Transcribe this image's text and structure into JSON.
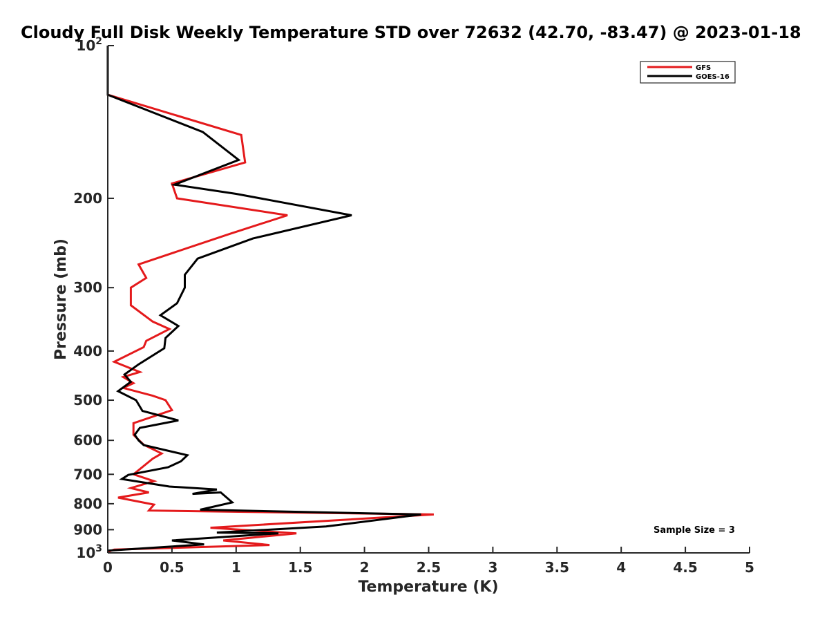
{
  "chart_data": {
    "type": "line",
    "title": "Cloudy Full Disk Weekly Temperature STD over 72632 (42.70, -83.47) @ 2023-01-18",
    "xlabel": "Temperature (K)",
    "ylabel": "Pressure (mb)",
    "xlim": [
      0,
      5
    ],
    "ylim": [
      100,
      1000
    ],
    "yscale": "log",
    "y_reversed": true,
    "grid": false,
    "legend_position": "top-right",
    "x_ticks": [
      0,
      0.5,
      1,
      1.5,
      2,
      2.5,
      3,
      3.5,
      4,
      4.5,
      5
    ],
    "x_tick_labels": [
      "0",
      "0.5",
      "1",
      "1.5",
      "2",
      "2.5",
      "3",
      "3.5",
      "4",
      "4.5",
      "5"
    ],
    "y_ticks": [
      {
        "value": 100,
        "base": "10",
        "exp": "2"
      },
      {
        "value": 200,
        "label": "200"
      },
      {
        "value": 300,
        "label": "300"
      },
      {
        "value": 400,
        "label": "400"
      },
      {
        "value": 500,
        "label": "500"
      },
      {
        "value": 600,
        "label": "600"
      },
      {
        "value": 700,
        "label": "700"
      },
      {
        "value": 800,
        "label": "800"
      },
      {
        "value": 900,
        "label": "900"
      },
      {
        "value": 1000,
        "base": "10",
        "exp": "3"
      }
    ],
    "annotation": "Sample Size = 3",
    "series": [
      {
        "name": "GFS",
        "color": "#e41a1c",
        "points": [
          [
            0,
            100
          ],
          [
            0,
            125
          ],
          [
            1.04,
            150
          ],
          [
            1.07,
            170
          ],
          [
            0.5,
            187
          ],
          [
            0.54,
            200
          ],
          [
            1.4,
            216
          ],
          [
            0.95,
            235
          ],
          [
            0.24,
            270
          ],
          [
            0.3,
            287
          ],
          [
            0.18,
            300
          ],
          [
            0.18,
            325
          ],
          [
            0.35,
            350
          ],
          [
            0.48,
            362
          ],
          [
            0.3,
            382
          ],
          [
            0.28,
            393
          ],
          [
            0.05,
            420
          ],
          [
            0.25,
            440
          ],
          [
            0.12,
            450
          ],
          [
            0.2,
            463
          ],
          [
            0.12,
            473
          ],
          [
            0.35,
            490
          ],
          [
            0.45,
            500
          ],
          [
            0.5,
            523
          ],
          [
            0.2,
            555
          ],
          [
            0.2,
            585
          ],
          [
            0.28,
            612
          ],
          [
            0.42,
            637
          ],
          [
            0.35,
            652
          ],
          [
            0.2,
            700
          ],
          [
            0.36,
            722
          ],
          [
            0.18,
            745
          ],
          [
            0.32,
            760
          ],
          [
            0.08,
            778
          ],
          [
            0.36,
            803
          ],
          [
            0.32,
            825
          ],
          [
            2.54,
            840
          ],
          [
            0.8,
            892
          ],
          [
            1.47,
            915
          ],
          [
            0.9,
            945
          ],
          [
            1.26,
            965
          ],
          [
            0.05,
            985
          ],
          [
            0,
            995
          ]
        ]
      },
      {
        "name": "GOES-16",
        "color": "#000000",
        "points": [
          [
            0,
            100
          ],
          [
            0,
            125
          ],
          [
            0.74,
            148
          ],
          [
            1.02,
            168
          ],
          [
            0.52,
            188
          ],
          [
            1.0,
            196
          ],
          [
            1.9,
            216
          ],
          [
            1.13,
            240
          ],
          [
            0.7,
            263
          ],
          [
            0.6,
            283
          ],
          [
            0.6,
            300
          ],
          [
            0.54,
            322
          ],
          [
            0.41,
            340
          ],
          [
            0.55,
            357
          ],
          [
            0.45,
            377
          ],
          [
            0.44,
            395
          ],
          [
            0.24,
            425
          ],
          [
            0.13,
            445
          ],
          [
            0.18,
            460
          ],
          [
            0.08,
            480
          ],
          [
            0.22,
            500
          ],
          [
            0.27,
            525
          ],
          [
            0.55,
            548
          ],
          [
            0.25,
            567
          ],
          [
            0.21,
            585
          ],
          [
            0.24,
            600
          ],
          [
            0.28,
            613
          ],
          [
            0.62,
            642
          ],
          [
            0.57,
            660
          ],
          [
            0.47,
            678
          ],
          [
            0.16,
            702
          ],
          [
            0.11,
            715
          ],
          [
            0.48,
            740
          ],
          [
            0.85,
            750
          ],
          [
            0.66,
            765
          ],
          [
            0.88,
            760
          ],
          [
            0.97,
            795
          ],
          [
            0.72,
            822
          ],
          [
            2.44,
            840
          ],
          [
            1.7,
            887
          ],
          [
            0.85,
            912
          ],
          [
            1.33,
            915
          ],
          [
            0.5,
            945
          ],
          [
            0.75,
            962
          ],
          [
            0.0,
            990
          ]
        ]
      }
    ]
  }
}
